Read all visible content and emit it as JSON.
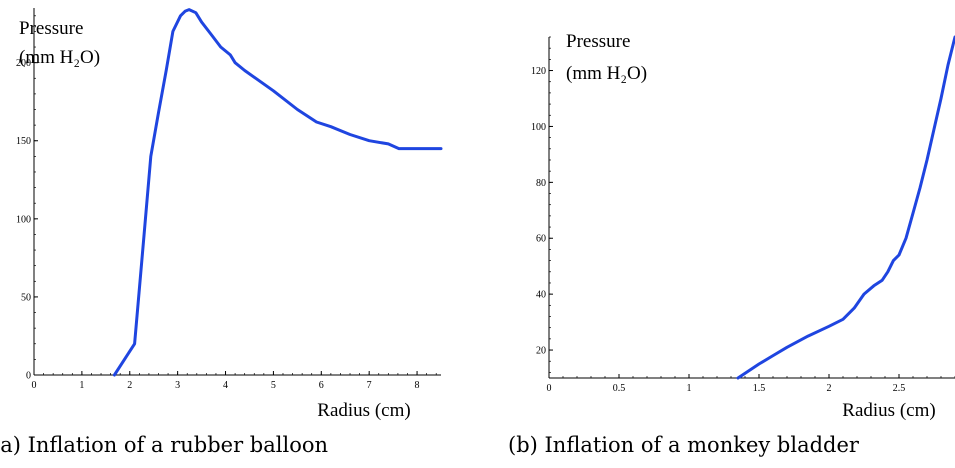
{
  "chart_data": [
    {
      "type": "line",
      "caption": "(a) Inflation of a rubber balloon",
      "title": "",
      "xlabel": "Radius (cm)",
      "ylabel_lines": [
        "Pressure",
        "(mm H₂O)"
      ],
      "xlim": [
        0,
        8.5
      ],
      "ylim": [
        0,
        235
      ],
      "xticks": [
        0,
        1,
        2,
        3,
        4,
        5,
        6,
        7,
        8
      ],
      "yticks": [
        0,
        50,
        100,
        150,
        200
      ],
      "grid": false,
      "line_color": "#1f45e0",
      "series": [
        {
          "x": [
            1.68,
            2.1,
            2.3,
            2.44,
            2.6,
            2.76,
            2.9,
            3.06,
            3.16,
            3.24,
            3.38,
            3.5,
            3.7,
            3.9,
            4.1,
            4.2,
            4.4,
            5.0,
            5.5,
            5.9,
            6.2,
            6.6,
            7.0,
            7.4,
            7.62,
            8.5
          ],
          "y": [
            0,
            20,
            90,
            140,
            168,
            195,
            220,
            230,
            233,
            234,
            232,
            226,
            218,
            210,
            205,
            200,
            195,
            182,
            170,
            162,
            159,
            154,
            150,
            148,
            145,
            145
          ]
        }
      ]
    },
    {
      "type": "line",
      "caption": "(b) Inflation of a monkey bladder",
      "title": "",
      "xlabel": "Radius (cm)",
      "ylabel_lines": [
        "Pressure",
        "(mm H₂O)"
      ],
      "xlim": [
        0,
        2.9
      ],
      "ylim": [
        10,
        132
      ],
      "xticks": [
        0,
        0.5,
        1,
        1.5,
        2,
        2.5
      ],
      "yticks": [
        20,
        40,
        60,
        80,
        100,
        120
      ],
      "grid": false,
      "line_color": "#1f45e0",
      "series": [
        {
          "x": [
            1.35,
            1.5,
            1.6,
            1.7,
            1.85,
            2.0,
            2.1,
            2.18,
            2.25,
            2.32,
            2.38,
            2.42,
            2.46,
            2.5,
            2.55,
            2.6,
            2.65,
            2.7,
            2.75,
            2.8,
            2.85,
            2.9
          ],
          "y": [
            10,
            15,
            18,
            21,
            25,
            28.5,
            31,
            35,
            40,
            43,
            45,
            48,
            52,
            54,
            60,
            69,
            78,
            88,
            99,
            110,
            122,
            132
          ]
        }
      ]
    }
  ]
}
